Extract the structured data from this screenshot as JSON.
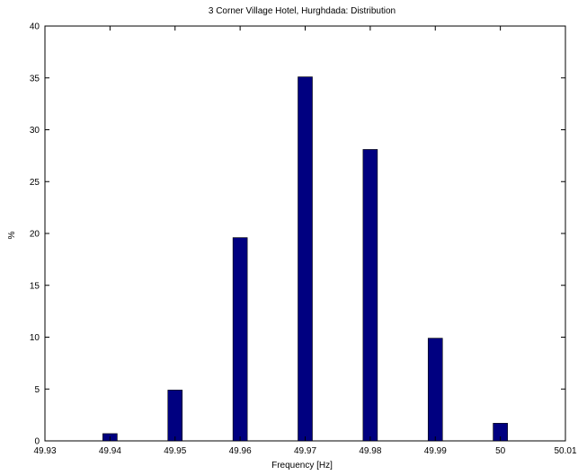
{
  "chart_data": {
    "type": "bar",
    "title": "3 Corner Village Hotel, Hurghdada: Distribution",
    "xlabel": "Frequency [Hz]",
    "ylabel": "%",
    "x": [
      49.94,
      49.95,
      49.96,
      49.97,
      49.98,
      49.99,
      50.0
    ],
    "values": [
      0.7,
      4.9,
      19.6,
      35.1,
      28.1,
      9.9,
      1.7
    ],
    "xlim": [
      49.93,
      50.01
    ],
    "ylim": [
      0,
      40
    ],
    "xticks": [
      "49.93",
      "49.94",
      "49.95",
      "49.96",
      "49.97",
      "49.98",
      "49.99",
      "50",
      "50.01"
    ],
    "yticks": [
      "0",
      "5",
      "10",
      "15",
      "20",
      "25",
      "30",
      "35",
      "40"
    ],
    "bar_color": "#000080",
    "grid": false
  }
}
